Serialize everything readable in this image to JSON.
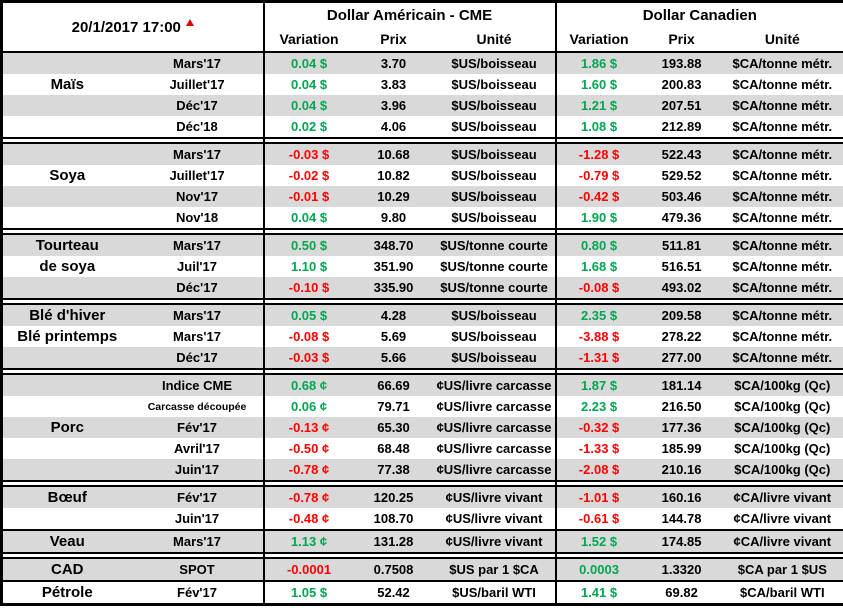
{
  "colors": {
    "positive": "#00A651",
    "negative": "#FF0000",
    "row_gray": "#D9D9D9",
    "border": "#000000"
  },
  "header": {
    "datetime": "20/1/2017 17:00",
    "usd_title": "Dollar Américain - CME",
    "cad_title": "Dollar Canadien",
    "columns": [
      "Variation",
      "Prix",
      "Unité"
    ]
  },
  "groups": [
    {
      "name": "Maïs",
      "rows": [
        {
          "label": "",
          "month": "Mars'17",
          "us": {
            "var": "0.04 $",
            "prix": "3.70",
            "unit": "$US/boisseau"
          },
          "ca": {
            "var": "1.86 $",
            "prix": "193.88",
            "unit": "$CA/tonne métr."
          }
        },
        {
          "label": "Maïs",
          "month": "Juillet'17",
          "us": {
            "var": "0.04 $",
            "prix": "3.83",
            "unit": "$US/boisseau"
          },
          "ca": {
            "var": "1.60 $",
            "prix": "200.83",
            "unit": "$CA/tonne métr."
          }
        },
        {
          "label": "",
          "month": "Déc'17",
          "us": {
            "var": "0.04 $",
            "prix": "3.96",
            "unit": "$US/boisseau"
          },
          "ca": {
            "var": "1.21 $",
            "prix": "207.51",
            "unit": "$CA/tonne métr."
          }
        },
        {
          "label": "",
          "month": "Déc'18",
          "us": {
            "var": "0.02 $",
            "prix": "4.06",
            "unit": "$US/boisseau"
          },
          "ca": {
            "var": "1.08 $",
            "prix": "212.89",
            "unit": "$CA/tonne métr."
          }
        }
      ]
    },
    {
      "name": "Soya",
      "rows": [
        {
          "label": "",
          "month": "Mars'17",
          "us": {
            "var": "-0.03 $",
            "prix": "10.68",
            "unit": "$US/boisseau"
          },
          "ca": {
            "var": "-1.28 $",
            "prix": "522.43",
            "unit": "$CA/tonne métr."
          }
        },
        {
          "label": "Soya",
          "month": "Juillet'17",
          "us": {
            "var": "-0.02 $",
            "prix": "10.82",
            "unit": "$US/boisseau"
          },
          "ca": {
            "var": "-0.79 $",
            "prix": "529.52",
            "unit": "$CA/tonne métr."
          }
        },
        {
          "label": "",
          "month": "Nov'17",
          "us": {
            "var": "-0.01 $",
            "prix": "10.29",
            "unit": "$US/boisseau"
          },
          "ca": {
            "var": "-0.42 $",
            "prix": "503.46",
            "unit": "$CA/tonne métr."
          }
        },
        {
          "label": "",
          "month": "Nov'18",
          "us": {
            "var": "0.04 $",
            "prix": "9.80",
            "unit": "$US/boisseau"
          },
          "ca": {
            "var": "1.90 $",
            "prix": "479.36",
            "unit": "$CA/tonne métr."
          }
        }
      ]
    },
    {
      "name": "Tourteau de soya",
      "rows": [
        {
          "label": "Tourteau",
          "month": "Mars'17",
          "us": {
            "var": "0.50 $",
            "prix": "348.70",
            "unit": "$US/tonne courte"
          },
          "ca": {
            "var": "0.80 $",
            "prix": "511.81",
            "unit": "$CA/tonne métr."
          }
        },
        {
          "label": "de soya",
          "month": "Juil'17",
          "us": {
            "var": "1.10 $",
            "prix": "351.90",
            "unit": "$US/tonne courte"
          },
          "ca": {
            "var": "1.68 $",
            "prix": "516.51",
            "unit": "$CA/tonne métr."
          }
        },
        {
          "label": "",
          "month": "Déc'17",
          "us": {
            "var": "-0.10 $",
            "prix": "335.90",
            "unit": "$US/tonne courte"
          },
          "ca": {
            "var": "-0.08 $",
            "prix": "493.02",
            "unit": "$CA/tonne métr."
          }
        }
      ]
    },
    {
      "name": "Blé",
      "rows": [
        {
          "label": "Blé d'hiver",
          "month": "Mars'17",
          "us": {
            "var": "0.05 $",
            "prix": "4.28",
            "unit": "$US/boisseau"
          },
          "ca": {
            "var": "2.35 $",
            "prix": "209.58",
            "unit": "$CA/tonne métr."
          }
        },
        {
          "label": "Blé printemps",
          "month": "Mars'17",
          "us": {
            "var": "-0.08 $",
            "prix": "5.69",
            "unit": "$US/boisseau"
          },
          "ca": {
            "var": "-3.88 $",
            "prix": "278.22",
            "unit": "$CA/tonne métr."
          }
        },
        {
          "label": "",
          "month": "Déc'17",
          "us": {
            "var": "-0.03 $",
            "prix": "5.66",
            "unit": "$US/boisseau"
          },
          "ca": {
            "var": "-1.31 $",
            "prix": "277.00",
            "unit": "$CA/tonne métr."
          }
        }
      ]
    },
    {
      "name": "Porc",
      "rows": [
        {
          "label": "",
          "month": "Indice CME",
          "us": {
            "var": "0.68 ¢",
            "prix": "66.69",
            "unit": "¢US/livre carcasse"
          },
          "ca": {
            "var": "1.87 $",
            "prix": "181.14",
            "unit": "$CA/100kg (Qc)"
          }
        },
        {
          "label": "",
          "month": "Carcasse découpée",
          "month_small": true,
          "us": {
            "var": "0.06 ¢",
            "prix": "79.71",
            "unit": "¢US/livre carcasse"
          },
          "ca": {
            "var": "2.23 $",
            "prix": "216.50",
            "unit": "$CA/100kg (Qc)"
          }
        },
        {
          "label": "Porc",
          "month": "Fév'17",
          "us": {
            "var": "-0.13 ¢",
            "prix": "65.30",
            "unit": "¢US/livre carcasse"
          },
          "ca": {
            "var": "-0.32 $",
            "prix": "177.36",
            "unit": "$CA/100kg (Qc)"
          }
        },
        {
          "label": "",
          "month": "Avril'17",
          "us": {
            "var": "-0.50 ¢",
            "prix": "68.48",
            "unit": "¢US/livre carcasse"
          },
          "ca": {
            "var": "-1.33 $",
            "prix": "185.99",
            "unit": "$CA/100kg (Qc)"
          }
        },
        {
          "label": "",
          "month": "Juin'17",
          "us": {
            "var": "-0.78 ¢",
            "prix": "77.38",
            "unit": "¢US/livre carcasse"
          },
          "ca": {
            "var": "-2.08 $",
            "prix": "210.16",
            "unit": "$CA/100kg (Qc)"
          }
        }
      ]
    },
    {
      "name": "Bœuf / Veau",
      "rows": [
        {
          "label": "Bœuf",
          "month": "Fév'17",
          "us": {
            "var": "-0.78 ¢",
            "prix": "120.25",
            "unit": "¢US/livre vivant"
          },
          "ca": {
            "var": "-1.01 $",
            "prix": "160.16",
            "unit": "¢CA/livre vivant"
          }
        },
        {
          "label": "",
          "month": "Juin'17",
          "us": {
            "var": "-0.48 ¢",
            "prix": "108.70",
            "unit": "¢US/livre vivant"
          },
          "ca": {
            "var": "-0.61 $",
            "prix": "144.78",
            "unit": "¢CA/livre vivant"
          }
        },
        {
          "label": "Veau",
          "month": "Mars'17",
          "divider": true,
          "us": {
            "var": "1.13 ¢",
            "prix": "131.28",
            "unit": "¢US/livre vivant"
          },
          "ca": {
            "var": "1.52 $",
            "prix": "174.85",
            "unit": "¢CA/livre vivant"
          }
        }
      ]
    },
    {
      "name": "CAD / Pétrole",
      "rows": [
        {
          "label": "CAD",
          "month": "SPOT",
          "us": {
            "var": "-0.0001",
            "prix": "0.7508",
            "unit": "$US par 1 $CA"
          },
          "ca": {
            "var": "0.0003",
            "prix": "1.3320",
            "unit": "$CA par 1 $US"
          }
        },
        {
          "label": "Pétrole",
          "month": "Fév'17",
          "divider": true,
          "us": {
            "var": "1.05 $",
            "prix": "52.42",
            "unit": "$US/baril WTI"
          },
          "ca": {
            "var": "1.41 $",
            "prix": "69.82",
            "unit": "$CA/baril WTI"
          }
        }
      ]
    }
  ]
}
